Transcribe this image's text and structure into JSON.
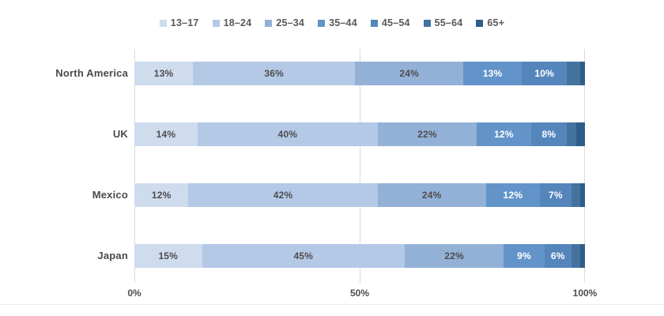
{
  "chart_data": {
    "type": "bar",
    "orientation": "horizontal",
    "stacked": true,
    "title": "",
    "xlabel": "",
    "ylabel": "",
    "xlim": [
      0,
      100
    ],
    "x_ticks": [
      {
        "label": "0%",
        "value": 0
      },
      {
        "label": "50%",
        "value": 50
      },
      {
        "label": "100%",
        "value": 100
      }
    ],
    "grid": true,
    "legend_position": "top",
    "label_threshold": 6,
    "categories": [
      "North America",
      "UK",
      "Mexico",
      "Japan"
    ],
    "series": [
      {
        "name": "13–17",
        "color": "#cfdcee",
        "text_color": "#4d4d4d",
        "values": [
          13,
          14,
          12,
          15
        ]
      },
      {
        "name": "18–24",
        "color": "#b4c9e6",
        "text_color": "#4d4d4d",
        "values": [
          36,
          40,
          42,
          45
        ]
      },
      {
        "name": "25–34",
        "color": "#93b1d7",
        "text_color": "#4d4d4d",
        "values": [
          24,
          22,
          24,
          22
        ]
      },
      {
        "name": "35–44",
        "color": "#6394c9",
        "text_color": "#ffffff",
        "values": [
          13,
          12,
          12,
          9
        ]
      },
      {
        "name": "45–54",
        "color": "#5486bc",
        "text_color": "#ffffff",
        "values": [
          10,
          8,
          7,
          6
        ]
      },
      {
        "name": "55–64",
        "color": "#44739e",
        "text_color": "#ffffff",
        "values": [
          3,
          2,
          2,
          2
        ]
      },
      {
        "name": "65+",
        "color": "#2f5d8a",
        "text_color": "#ffffff",
        "values": [
          1,
          2,
          1,
          1
        ]
      }
    ]
  }
}
